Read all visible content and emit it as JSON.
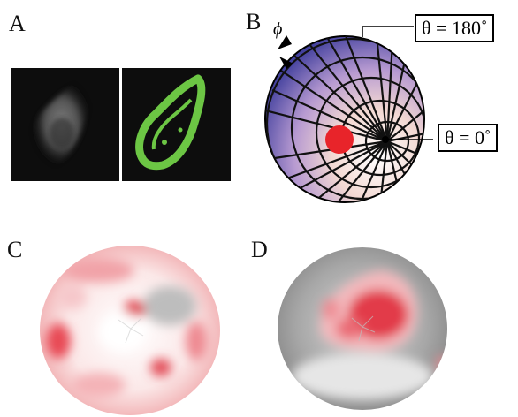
{
  "figure": {
    "panels": [
      {
        "id": "A",
        "label": "A"
      },
      {
        "id": "B",
        "label": "B"
      },
      {
        "id": "C",
        "label": "C"
      },
      {
        "id": "D",
        "label": "D"
      }
    ],
    "sphere": {
      "phi_symbol": "ϕ",
      "theta_180_label": "θ = 180˚",
      "theta_0_label": "θ = 0˚"
    },
    "colors": {
      "cell_outline_green": "#6cc644",
      "marker_red": "#e8242a",
      "heat_red": "#d9303a",
      "gray_background": "#9a9a9a"
    }
  }
}
